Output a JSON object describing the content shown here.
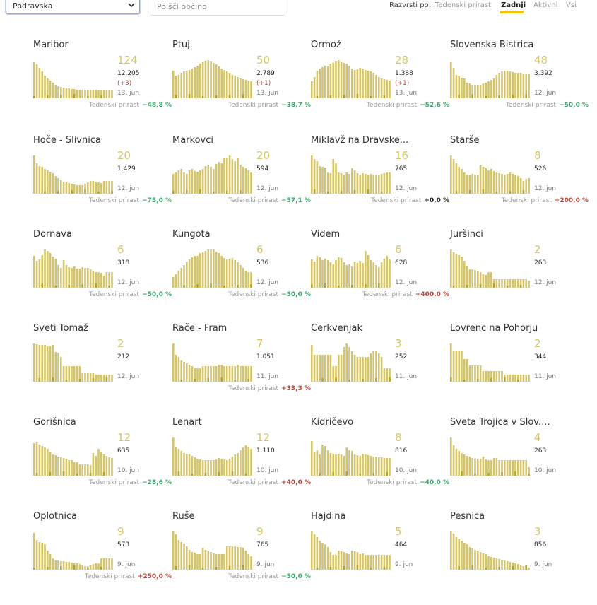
{
  "controls": {
    "region_select": "Podravska",
    "search_placeholder": "Poišči občino",
    "sort_label": "Razvrsti po:",
    "sort_options": [
      "Tedenski prirast",
      "Zadnji",
      "Aktivni",
      "Vsi"
    ],
    "active_sort": "Zadnji"
  },
  "colors": {
    "bar": "#d4c46a",
    "bar_dark": "#b6a42a",
    "accent": "#f2c600",
    "positive": "#b5453a",
    "negative": "#3aa86b"
  },
  "weekly_label": "Tedenski prirast",
  "municipalities": [
    {
      "name": "Maribor",
      "active": "124",
      "total": "12.205",
      "delta": "(+3)",
      "date": "13. jun",
      "weekly": "−48,8 %",
      "trend": "neg",
      "bars": [
        0.95,
        0.88,
        0.8,
        0.7,
        0.6,
        0.52,
        0.46,
        0.4,
        0.36,
        0.32,
        0.3,
        0.28,
        0.26,
        0.25,
        0.24,
        0.24,
        0.23,
        0.23,
        0.22,
        0.22,
        0.22,
        0.22,
        0.22,
        0.22,
        0.21,
        0.21,
        0.21,
        0.21,
        0.21,
        0.2
      ]
    },
    {
      "name": "Ptuj",
      "active": "50",
      "total": "2.789",
      "delta": "(+1)",
      "date": "13. jun",
      "weekly": "−38,7 %",
      "trend": "neg",
      "bars": [
        0.72,
        0.6,
        0.62,
        0.66,
        0.7,
        0.72,
        0.74,
        0.78,
        0.82,
        0.86,
        0.9,
        0.94,
        0.98,
        1.0,
        0.97,
        0.93,
        0.88,
        0.84,
        0.78,
        0.74,
        0.7,
        0.66,
        0.62,
        0.6,
        0.56,
        0.52,
        0.5,
        0.48,
        0.46,
        0.44
      ]
    },
    {
      "name": "Ormož",
      "active": "28",
      "total": "1.388",
      "delta": "(+1)",
      "date": "13. jun",
      "weekly": "−52,6 %",
      "trend": "neg",
      "bars": [
        0.45,
        0.55,
        0.72,
        0.78,
        0.82,
        0.86,
        0.84,
        0.9,
        0.92,
        0.96,
        1.0,
        0.95,
        0.92,
        0.9,
        0.86,
        0.78,
        0.74,
        0.76,
        0.8,
        0.78,
        0.74,
        0.72,
        0.7,
        0.66,
        0.62,
        0.56,
        0.52,
        0.5,
        0.48,
        0.46
      ]
    },
    {
      "name": "Slovenska Bistrica",
      "active": "48",
      "total": "3.392",
      "delta": "",
      "date": "12. jun",
      "weekly": "−50,0 %",
      "trend": "neg",
      "bars": [
        0.95,
        0.8,
        0.62,
        0.58,
        0.54,
        0.52,
        0.4,
        0.38,
        0.36,
        0.36,
        0.36,
        0.36,
        0.38,
        0.4,
        0.44,
        0.48,
        0.52,
        0.62,
        0.66,
        0.7,
        0.72,
        0.72,
        0.7,
        0.68,
        0.66,
        0.66,
        0.66,
        0.64,
        0.64,
        0.64
      ]
    },
    {
      "name": "Hoče - Slivnica",
      "active": "20",
      "total": "1.429",
      "delta": "",
      "date": "12. jun",
      "weekly": "−75,0 %",
      "trend": "neg",
      "bars": [
        1.0,
        0.8,
        0.72,
        0.7,
        0.64,
        0.62,
        0.58,
        0.54,
        0.46,
        0.4,
        0.36,
        0.32,
        0.3,
        0.28,
        0.26,
        0.24,
        0.22,
        0.22,
        0.22,
        0.26,
        0.3,
        0.34,
        0.34,
        0.32,
        0.3,
        0.28,
        0.34,
        0.34,
        0.34,
        0.34
      ]
    },
    {
      "name": "Markovci",
      "active": "20",
      "total": "594",
      "delta": "",
      "date": "12. jun",
      "weekly": "−57,1 %",
      "trend": "neg",
      "bars": [
        0.52,
        0.56,
        0.62,
        0.64,
        0.56,
        0.52,
        0.62,
        0.64,
        0.6,
        0.58,
        0.62,
        0.64,
        0.72,
        0.76,
        0.7,
        0.64,
        0.78,
        0.84,
        0.8,
        0.92,
        0.94,
        1.0,
        0.9,
        0.86,
        0.92,
        0.76,
        0.7,
        0.66,
        0.62,
        0.56
      ]
    },
    {
      "name": "Miklavž na Dravske...",
      "active": "16",
      "total": "765",
      "delta": "",
      "date": "12. jun",
      "weekly": "+0,0 %",
      "trend": "zero",
      "bars": [
        1.0,
        0.9,
        0.86,
        0.72,
        0.7,
        0.68,
        0.56,
        0.54,
        0.9,
        0.8,
        0.56,
        0.54,
        0.5,
        0.56,
        0.52,
        0.66,
        0.62,
        0.54,
        0.5,
        0.54,
        0.52,
        0.48,
        0.52,
        0.5,
        0.5,
        0.48,
        0.52,
        0.54,
        0.56,
        0.56
      ]
    },
    {
      "name": "Starše",
      "active": "8",
      "total": "526",
      "delta": "",
      "date": "12. jun",
      "weekly": "+200,0 %",
      "trend": "pos",
      "bars": [
        1.0,
        0.9,
        0.8,
        0.7,
        0.64,
        0.56,
        0.5,
        0.48,
        0.52,
        0.5,
        0.48,
        0.74,
        0.7,
        0.66,
        0.62,
        0.64,
        0.6,
        0.56,
        0.54,
        0.52,
        0.5,
        0.52,
        0.56,
        0.52,
        0.48,
        0.46,
        0.4,
        0.34,
        0.38,
        0.4
      ]
    },
    {
      "name": "Dornava",
      "active": "6",
      "total": "318",
      "delta": "",
      "date": "12. jun",
      "weekly": "−50,0 %",
      "trend": "neg",
      "bars": [
        0.84,
        0.7,
        0.74,
        0.86,
        1.0,
        0.96,
        0.9,
        0.82,
        0.76,
        0.6,
        0.52,
        0.72,
        0.6,
        0.54,
        0.52,
        0.56,
        0.5,
        0.5,
        0.54,
        0.52,
        0.52,
        0.48,
        0.42,
        0.4,
        0.4,
        0.38,
        0.32,
        0.4,
        0.4,
        0.4
      ]
    },
    {
      "name": "Kungota",
      "active": "6",
      "total": "536",
      "delta": "",
      "date": "12. jun",
      "weekly": "−50,0 %",
      "trend": "neg",
      "bars": [
        0.28,
        0.36,
        0.44,
        0.52,
        0.6,
        0.68,
        0.74,
        0.8,
        0.84,
        0.84,
        0.9,
        0.92,
        0.96,
        1.0,
        1.0,
        1.0,
        0.94,
        0.9,
        0.84,
        0.78,
        0.74,
        0.76,
        0.78,
        0.72,
        0.66,
        0.6,
        0.52,
        0.44,
        0.4,
        0.4
      ]
    },
    {
      "name": "Videm",
      "active": "6",
      "total": "628",
      "delta": "",
      "date": "12. jun",
      "weekly": "+400,0 %",
      "trend": "pos",
      "bars": [
        0.74,
        0.68,
        0.84,
        0.8,
        0.72,
        0.76,
        0.72,
        0.66,
        0.62,
        0.72,
        0.8,
        0.78,
        0.66,
        0.6,
        0.62,
        0.56,
        0.68,
        0.64,
        0.7,
        0.64,
        0.96,
        0.86,
        0.72,
        0.66,
        0.6,
        0.54,
        0.66,
        0.76,
        0.84,
        0.74
      ]
    },
    {
      "name": "Juršinci",
      "active": "2",
      "total": "263",
      "delta": "",
      "date": "12. jun",
      "weekly": "",
      "trend": "zero",
      "bars": [
        1.0,
        0.92,
        0.88,
        0.86,
        0.82,
        0.7,
        0.58,
        0.48,
        0.48,
        0.46,
        0.44,
        0.4,
        0.36,
        0.34,
        0.4,
        0.4,
        0.22,
        0.22,
        0.22,
        0.22,
        0.22,
        0.22,
        0.22,
        0.22,
        0.22,
        0.22,
        0.22,
        0.22,
        0.22,
        0.18
      ]
    },
    {
      "name": "Sveti Tomaž",
      "active": "2",
      "total": "212",
      "delta": "",
      "date": "12. jun",
      "weekly": "",
      "trend": "zero",
      "bars": [
        1.0,
        0.98,
        0.96,
        0.96,
        0.96,
        0.92,
        0.92,
        0.96,
        0.78,
        0.76,
        0.64,
        0.4,
        0.4,
        0.4,
        0.4,
        0.4,
        0.4,
        0.4,
        0.22,
        0.22,
        0.22,
        0.22,
        0.22,
        0.18,
        0.18,
        0.18,
        0.18,
        0.18,
        0.18,
        0.18
      ]
    },
    {
      "name": "Rače - Fram",
      "active": "7",
      "total": "1.051",
      "delta": "",
      "date": "11. jun",
      "weekly": "+33,3 %",
      "trend": "pos",
      "bars": [
        1.0,
        0.7,
        0.64,
        0.56,
        0.52,
        0.48,
        0.44,
        0.4,
        0.36,
        0.36,
        0.36,
        0.4,
        0.4,
        0.4,
        0.4,
        0.4,
        0.4,
        0.44,
        0.44,
        0.4,
        0.4,
        0.4,
        0.4,
        0.4,
        0.44,
        0.4,
        0.4,
        0.4,
        0.4,
        0.4
      ]
    },
    {
      "name": "Cerkvenjak",
      "active": "3",
      "total": "252",
      "delta": "",
      "date": "11. jun",
      "weekly": "",
      "trend": "zero",
      "bars": [
        0.96,
        0.7,
        0.7,
        0.7,
        0.7,
        0.7,
        0.7,
        0.7,
        0.4,
        0.4,
        0.7,
        0.7,
        0.9,
        1.0,
        0.9,
        0.8,
        0.7,
        0.64,
        0.64,
        0.64,
        0.64,
        0.64,
        0.74,
        0.82,
        0.82,
        0.74,
        0.64,
        0.36,
        0.36,
        0.36
      ]
    },
    {
      "name": "Lovrenc na Pohorju",
      "active": "2",
      "total": "344",
      "delta": "",
      "date": "11. jun",
      "weekly": "",
      "trend": "zero",
      "bars": [
        1.0,
        0.82,
        0.82,
        0.82,
        0.82,
        0.6,
        0.6,
        0.42,
        0.42,
        0.42,
        0.42,
        0.42,
        0.28,
        0.28,
        0.28,
        0.28,
        0.28,
        0.28,
        0.28,
        0.28,
        0.18,
        0.18,
        0.18,
        0.18,
        0.18,
        0.18,
        0.18,
        0.18,
        0.18,
        0.18
      ]
    },
    {
      "name": "Gorišnica",
      "active": "12",
      "total": "635",
      "delta": "",
      "date": "10. jun",
      "weekly": "−28,6 %",
      "trend": "neg",
      "bars": [
        0.86,
        0.88,
        0.82,
        0.78,
        0.74,
        0.7,
        0.62,
        0.56,
        0.54,
        0.5,
        0.48,
        0.46,
        0.44,
        0.4,
        0.4,
        0.36,
        0.36,
        0.3,
        0.3,
        0.3,
        0.3,
        0.28,
        0.6,
        0.52,
        0.7,
        0.62,
        0.56,
        0.52,
        0.48,
        0.46
      ]
    },
    {
      "name": "Lenart",
      "active": "12",
      "total": "1.110",
      "delta": "",
      "date": "10. jun",
      "weekly": "+40,0 %",
      "trend": "pos",
      "bars": [
        1.0,
        0.76,
        0.7,
        0.64,
        0.6,
        0.58,
        0.56,
        0.52,
        0.48,
        0.44,
        0.42,
        0.4,
        0.4,
        0.4,
        0.4,
        0.4,
        0.42,
        0.46,
        0.44,
        0.42,
        0.4,
        0.44,
        0.5,
        0.56,
        0.6,
        0.66,
        0.74,
        0.8,
        0.76,
        0.7
      ]
    },
    {
      "name": "Kidričevo",
      "active": "8",
      "total": "816",
      "delta": "",
      "date": "10. jun",
      "weekly": "−40,0 %",
      "trend": "neg",
      "bars": [
        0.9,
        0.62,
        0.66,
        0.56,
        0.82,
        0.78,
        0.66,
        0.6,
        0.58,
        0.56,
        0.58,
        0.56,
        0.52,
        0.74,
        0.66,
        0.64,
        0.56,
        0.54,
        0.52,
        0.58,
        0.56,
        0.54,
        0.52,
        0.5,
        0.5,
        0.48,
        0.48,
        0.46,
        0.46,
        0.46
      ]
    },
    {
      "name": "Sveta Trojica v Slov....",
      "active": "4",
      "total": "263",
      "delta": "",
      "date": "10. jun",
      "weekly": "",
      "trend": "zero",
      "bars": [
        1.0,
        0.8,
        0.7,
        0.64,
        0.6,
        0.56,
        0.52,
        0.5,
        0.46,
        0.44,
        0.44,
        0.44,
        0.5,
        0.42,
        0.4,
        0.4,
        0.46,
        0.46,
        0.4,
        0.4,
        0.4,
        0.4,
        0.4,
        0.4,
        0.4,
        0.4,
        0.4,
        0.4,
        0.4,
        0.22
      ]
    },
    {
      "name": "Oplotnica",
      "active": "9",
      "total": "573",
      "delta": "",
      "date": "9. jun",
      "weekly": "+250,0 %",
      "trend": "pos",
      "bars": [
        0.96,
        0.78,
        0.72,
        0.7,
        0.66,
        0.5,
        0.4,
        0.3,
        0.24,
        0.24,
        0.22,
        0.22,
        0.2,
        0.2,
        0.18,
        0.16,
        0.16,
        0.14,
        0.12,
        0.1,
        0.1,
        0.12,
        0.14,
        0.16,
        0.16,
        0.3,
        0.3,
        0.3,
        0.3,
        0.3
      ]
    },
    {
      "name": "Ruše",
      "active": "9",
      "total": "765",
      "delta": "",
      "date": "9. jun",
      "weekly": "−50,0 %",
      "trend": "neg",
      "bars": [
        1.0,
        0.92,
        0.78,
        0.72,
        0.68,
        0.62,
        0.52,
        0.46,
        0.44,
        0.4,
        0.4,
        0.58,
        0.52,
        0.48,
        0.46,
        0.42,
        0.4,
        0.4,
        0.4,
        0.4,
        0.62,
        0.62,
        0.62,
        0.62,
        0.6,
        0.6,
        0.58,
        0.5,
        0.4,
        0.36
      ]
    },
    {
      "name": "Hajdina",
      "active": "5",
      "total": "464",
      "delta": "",
      "date": "9. jun",
      "weekly": "",
      "trend": "zero",
      "bars": [
        1.0,
        0.92,
        0.86,
        0.76,
        0.7,
        0.66,
        0.6,
        0.46,
        0.38,
        0.38,
        0.5,
        0.48,
        0.46,
        0.42,
        0.4,
        0.5,
        0.48,
        0.46,
        0.4,
        0.42,
        0.38,
        0.38,
        0.38,
        0.38,
        0.38,
        0.38,
        0.38,
        0.38,
        0.38,
        0.38
      ]
    },
    {
      "name": "Pesnica",
      "active": "3",
      "total": "856",
      "delta": "",
      "date": "9. jun",
      "weekly": "",
      "trend": "zero",
      "bars": [
        1.0,
        0.94,
        0.86,
        0.8,
        0.76,
        0.7,
        0.66,
        0.6,
        0.56,
        0.52,
        0.5,
        0.46,
        0.42,
        0.4,
        0.36,
        0.34,
        0.32,
        0.3,
        0.28,
        0.26,
        0.24,
        0.22,
        0.2,
        0.18,
        0.16,
        0.14,
        0.12,
        0.1,
        0.08,
        0.06
      ]
    }
  ]
}
